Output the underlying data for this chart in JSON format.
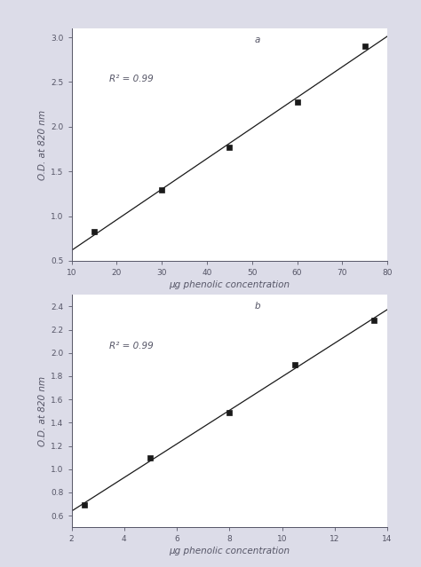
{
  "chart_a": {
    "label": "a",
    "x": [
      15,
      30,
      45,
      60,
      75
    ],
    "y": [
      0.83,
      1.29,
      1.77,
      2.28,
      2.9
    ],
    "xlabel": "μg phenolic concentration",
    "ylabel": "O.D. at 820 nm",
    "r2_text": "R² = 0.99",
    "xlim": [
      10,
      80
    ],
    "ylim": [
      0.5,
      3.1
    ],
    "xticks": [
      10,
      20,
      30,
      40,
      50,
      60,
      70,
      80
    ],
    "yticks": [
      0.5,
      1.0,
      1.5,
      2.0,
      2.5,
      3.0
    ]
  },
  "chart_b": {
    "label": "b",
    "x": [
      2.5,
      5,
      8,
      10.5,
      13.5
    ],
    "y": [
      0.69,
      1.1,
      1.49,
      1.9,
      2.28
    ],
    "xlabel": "μg phenolic concentration",
    "ylabel": "O.D. at 820 nm",
    "r2_text": "R² = 0.99",
    "xlim": [
      2,
      14
    ],
    "ylim": [
      0.5,
      2.5
    ],
    "xticks": [
      2,
      4,
      6,
      8,
      10,
      12,
      14
    ],
    "yticks": [
      0.6,
      0.8,
      1.0,
      1.2,
      1.4,
      1.6,
      1.8,
      2.0,
      2.2,
      2.4
    ]
  },
  "bg_color": "#dcdce8",
  "plot_bg": "#ffffff",
  "marker_color": "#1a1a1a",
  "line_color": "#1a1a1a",
  "text_color": "#555566",
  "spine_color": "#555566"
}
